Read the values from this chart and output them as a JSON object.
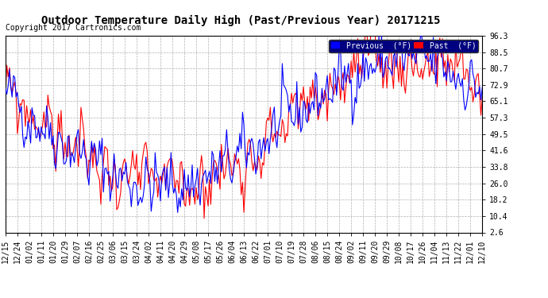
{
  "title": "Outdoor Temperature Daily High (Past/Previous Year) 20171215",
  "copyright": "Copyright 2017 Cartronics.com",
  "legend_previous_label": "Previous  (°F)",
  "legend_past_label": "Past  (°F)",
  "legend_previous_color": "#0000ff",
  "legend_past_color": "#ff0000",
  "legend_bg_color": "#000080",
  "yticks": [
    2.6,
    10.4,
    18.2,
    26.0,
    33.8,
    41.6,
    49.5,
    57.3,
    65.1,
    72.9,
    80.7,
    88.5,
    96.3
  ],
  "xtick_labels": [
    "12/15",
    "12/24",
    "01/02",
    "01/11",
    "01/20",
    "01/29",
    "02/07",
    "02/16",
    "02/25",
    "03/06",
    "03/15",
    "03/24",
    "04/02",
    "04/11",
    "04/20",
    "04/29",
    "05/08",
    "05/17",
    "05/26",
    "06/04",
    "06/13",
    "06/22",
    "07/01",
    "07/10",
    "07/19",
    "07/28",
    "08/06",
    "08/15",
    "08/24",
    "09/02",
    "09/11",
    "09/20",
    "09/29",
    "10/08",
    "10/17",
    "10/26",
    "11/04",
    "11/13",
    "11/22",
    "12/01",
    "12/10"
  ],
  "background_color": "#ffffff",
  "plot_bg_color": "#ffffff",
  "grid_color": "#b0b0b0",
  "line_color_previous": "#0000ff",
  "line_color_past": "#ff0000",
  "line_width": 0.8,
  "ylim_min": 2.6,
  "ylim_max": 96.3,
  "title_fontsize": 10,
  "copyright_fontsize": 7,
  "tick_fontsize": 7
}
